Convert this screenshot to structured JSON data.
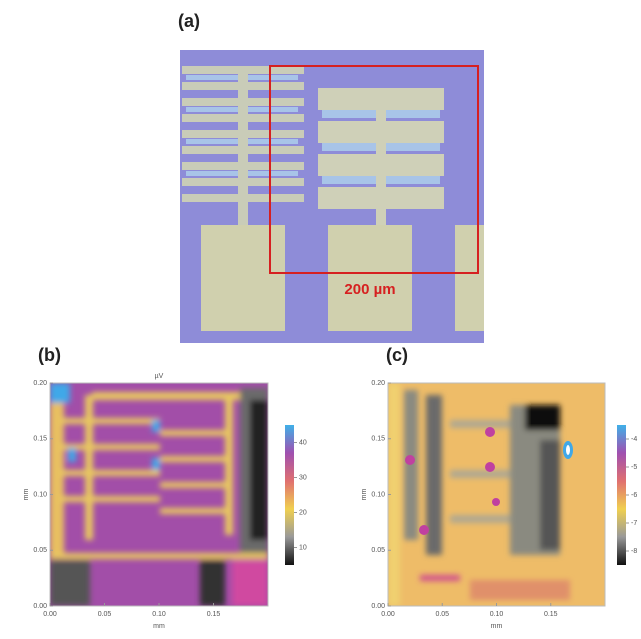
{
  "panels": [
    {
      "label": "(a)",
      "scale_bar": "200 µm"
    },
    {
      "label": "(b)",
      "title": "µV",
      "x_label": "mm",
      "y_label": "mm",
      "xlim": [
        0,
        0.2
      ],
      "ylim": [
        0,
        0.2
      ],
      "xticks": [
        {
          "value": 0,
          "label": "0.00"
        },
        {
          "value": 0.05,
          "label": "0.05"
        },
        {
          "value": 0.1,
          "label": "0.10"
        },
        {
          "value": 0.15,
          "label": "0.15"
        }
      ],
      "yticks": [
        {
          "value": 0,
          "label": "0.00"
        },
        {
          "value": 0.05,
          "label": "0.05"
        },
        {
          "value": 0.1,
          "label": "0.10"
        },
        {
          "value": 0.15,
          "label": "0.15"
        },
        {
          "value": 0.2,
          "label": "0.20"
        }
      ],
      "colorbar_lim": [
        5,
        45
      ],
      "colorbar_ticks": [
        10,
        20,
        30,
        40
      ]
    },
    {
      "label": "(c)",
      "x_label": "mm",
      "y_label": "mm",
      "xlim": [
        0,
        0.2
      ],
      "ylim": [
        0,
        0.2
      ],
      "xticks": [
        {
          "value": 0,
          "label": "0.00"
        },
        {
          "value": 0.05,
          "label": "0.05"
        },
        {
          "value": 0.1,
          "label": "0.10"
        },
        {
          "value": 0.15,
          "label": "0.15"
        }
      ],
      "yticks": [
        {
          "value": 0,
          "label": "0.00"
        },
        {
          "value": 0.05,
          "label": "0.05"
        },
        {
          "value": 0.1,
          "label": "0.10"
        },
        {
          "value": 0.15,
          "label": "0.15"
        },
        {
          "value": 0.2,
          "label": "0.20"
        }
      ],
      "colorbar_lim": [
        -8.5,
        -3.5
      ],
      "colorbar_ticks": [
        -8,
        -7,
        -6,
        -5,
        -4
      ]
    }
  ]
}
